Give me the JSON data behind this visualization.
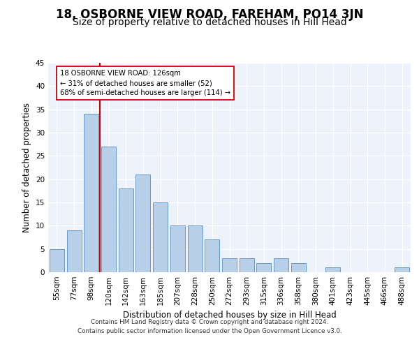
{
  "title": "18, OSBORNE VIEW ROAD, FAREHAM, PO14 3JN",
  "subtitle": "Size of property relative to detached houses in Hill Head",
  "xlabel": "Distribution of detached houses by size in Hill Head",
  "ylabel": "Number of detached properties",
  "categories": [
    "55sqm",
    "77sqm",
    "98sqm",
    "120sqm",
    "142sqm",
    "163sqm",
    "185sqm",
    "207sqm",
    "228sqm",
    "250sqm",
    "272sqm",
    "293sqm",
    "315sqm",
    "336sqm",
    "358sqm",
    "380sqm",
    "401sqm",
    "423sqm",
    "445sqm",
    "466sqm",
    "488sqm"
  ],
  "values": [
    5,
    9,
    34,
    27,
    18,
    21,
    15,
    10,
    10,
    7,
    3,
    3,
    2,
    3,
    2,
    0,
    1,
    0,
    0,
    0,
    1
  ],
  "bar_color": "#b8cfe8",
  "bar_edge_color": "#6699cc",
  "vline_color": "#cc0000",
  "annotation_text": "18 OSBORNE VIEW ROAD: 126sqm\n← 31% of detached houses are smaller (52)\n68% of semi-detached houses are larger (114) →",
  "annotation_box_facecolor": "#ffffff",
  "annotation_box_edgecolor": "#cc0000",
  "ylim": [
    0,
    45
  ],
  "yticks": [
    0,
    5,
    10,
    15,
    20,
    25,
    30,
    35,
    40,
    45
  ],
  "bg_color": "#eef2fb",
  "title_fontsize": 12,
  "subtitle_fontsize": 10,
  "axis_label_fontsize": 8.5,
  "tick_fontsize": 7.5,
  "footer_line1": "Contains HM Land Registry data © Crown copyright and database right 2024.",
  "footer_line2": "Contains public sector information licensed under the Open Government Licence v3.0."
}
